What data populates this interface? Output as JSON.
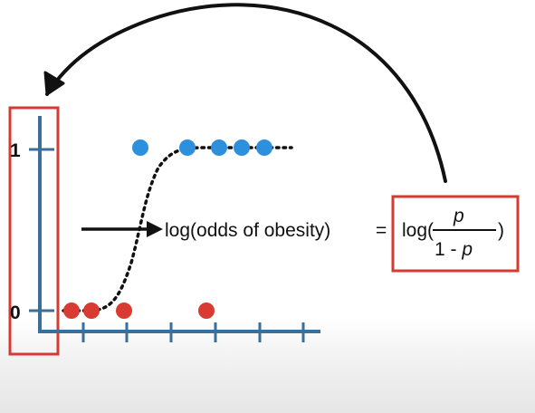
{
  "y_axis": {
    "tick_labels": [
      "1",
      "0"
    ],
    "tick_values": [
      1,
      0
    ]
  },
  "data_points": {
    "obese": {
      "color": "#2e8fdc",
      "y": 1,
      "count": 5
    },
    "not_obese": {
      "color": "#d93a32",
      "y": 0,
      "count": 4
    }
  },
  "equation": {
    "left": "log(odds of obesity)",
    "equals": "=",
    "log_open": "log(",
    "numerator": "p",
    "denominator_prefix": "1 - ",
    "denominator_var": "p",
    "log_close": ")"
  },
  "colors": {
    "axis": "#3a6f9a",
    "highlight_box": "#d63a30",
    "arrow": "#111111",
    "curve": "#111111"
  }
}
